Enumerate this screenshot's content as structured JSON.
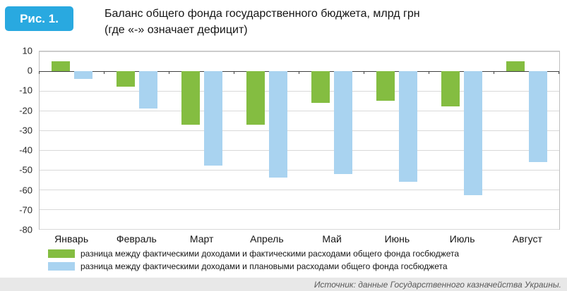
{
  "figure_label": "Рис. 1.",
  "title_line1": "Баланс общего фонда государственного бюджета, млрд грн",
  "title_line2": "(где «-» означает дефицит)",
  "accent_color": "#29a9e0",
  "chart_data": {
    "type": "bar",
    "title": "Баланс общего фонда государственного бюджета, млрд грн (где «-» означает дефицит)",
    "categories": [
      "Январь",
      "Февраль",
      "Март",
      "Апрель",
      "Май",
      "Июнь",
      "Июль",
      "Август"
    ],
    "series": [
      {
        "name": "разница между фактическими доходами и фактическими расходами общего фонда госбюджета",
        "color": "#84bd41",
        "values": [
          5,
          -8,
          -27,
          -27,
          -16,
          -15,
          -18,
          5
        ]
      },
      {
        "name": "разница между фактическими доходами и плановыми расходами общего фонда госбюджета",
        "color": "#a9d3f0",
        "values": [
          -4,
          -19,
          -48,
          -54,
          -52,
          -56,
          -63,
          -46
        ]
      }
    ],
    "xlabel": "",
    "ylabel": "",
    "ylim": [
      -80,
      10
    ],
    "yticks": [
      10,
      0,
      -10,
      -20,
      -30,
      -40,
      -50,
      -60,
      -70,
      -80
    ],
    "grid": true,
    "legend_position": "bottom"
  },
  "source": "Источник: данные Государственного казначейства Украины."
}
